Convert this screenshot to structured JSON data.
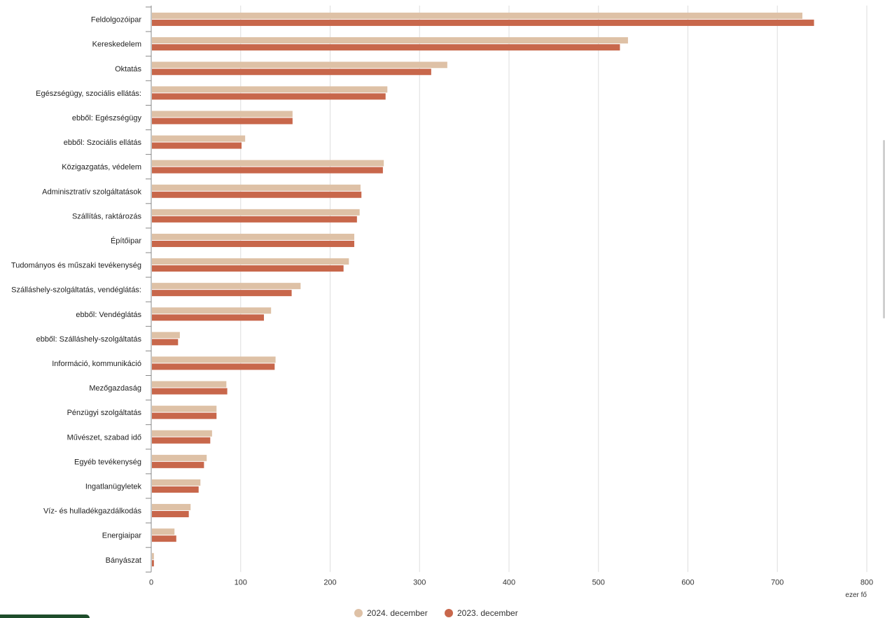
{
  "chart_data": {
    "type": "bar",
    "orientation": "horizontal",
    "categories": [
      "Feldolgozóipar",
      "Kereskedelem",
      "Oktatás",
      "Egészségügy, szociális ellátás:",
      "ebből: Egészségügy",
      "ebből: Szociális ellátás",
      "Közigazgatás, védelem",
      "Adminisztratív szolgáltatások",
      "Szállítás, raktározás",
      "Építőipar",
      "Tudományos és műszaki tevékenység",
      "Szálláshely-szolgáltatás, vendéglátás:",
      "ebből: Vendéglátás",
      "ebből: Szálláshely-szolgáltatás",
      "Információ, kommunikáció",
      "Mezőgazdaság",
      "Pénzügyi szolgáltatás",
      "Művészet, szabad idő",
      "Egyéb tevékenység",
      "Ingatlanügyletek",
      "Víz- és hulladékgazdálkodás",
      "Energiaipar",
      "Bányászat"
    ],
    "series": [
      {
        "name": "2024. december",
        "color": "#dec1a6",
        "values": [
          728,
          533,
          331,
          264,
          158,
          105,
          260,
          234,
          233,
          227,
          221,
          167,
          134,
          32,
          139,
          84,
          73,
          68,
          62,
          55,
          44,
          26,
          3
        ]
      },
      {
        "name": "2023. december",
        "color": "#c8674b",
        "values": [
          741,
          524,
          313,
          262,
          158,
          101,
          259,
          235,
          230,
          227,
          215,
          157,
          126,
          30,
          138,
          85,
          73,
          66,
          59,
          53,
          42,
          28,
          3
        ]
      }
    ],
    "xlim": [
      0,
      800
    ],
    "xticks": [
      0,
      100,
      200,
      300,
      400,
      500,
      600,
      700,
      800
    ],
    "xlabel": "ezer fő",
    "grid": true,
    "legend_position": "bottom-center"
  }
}
